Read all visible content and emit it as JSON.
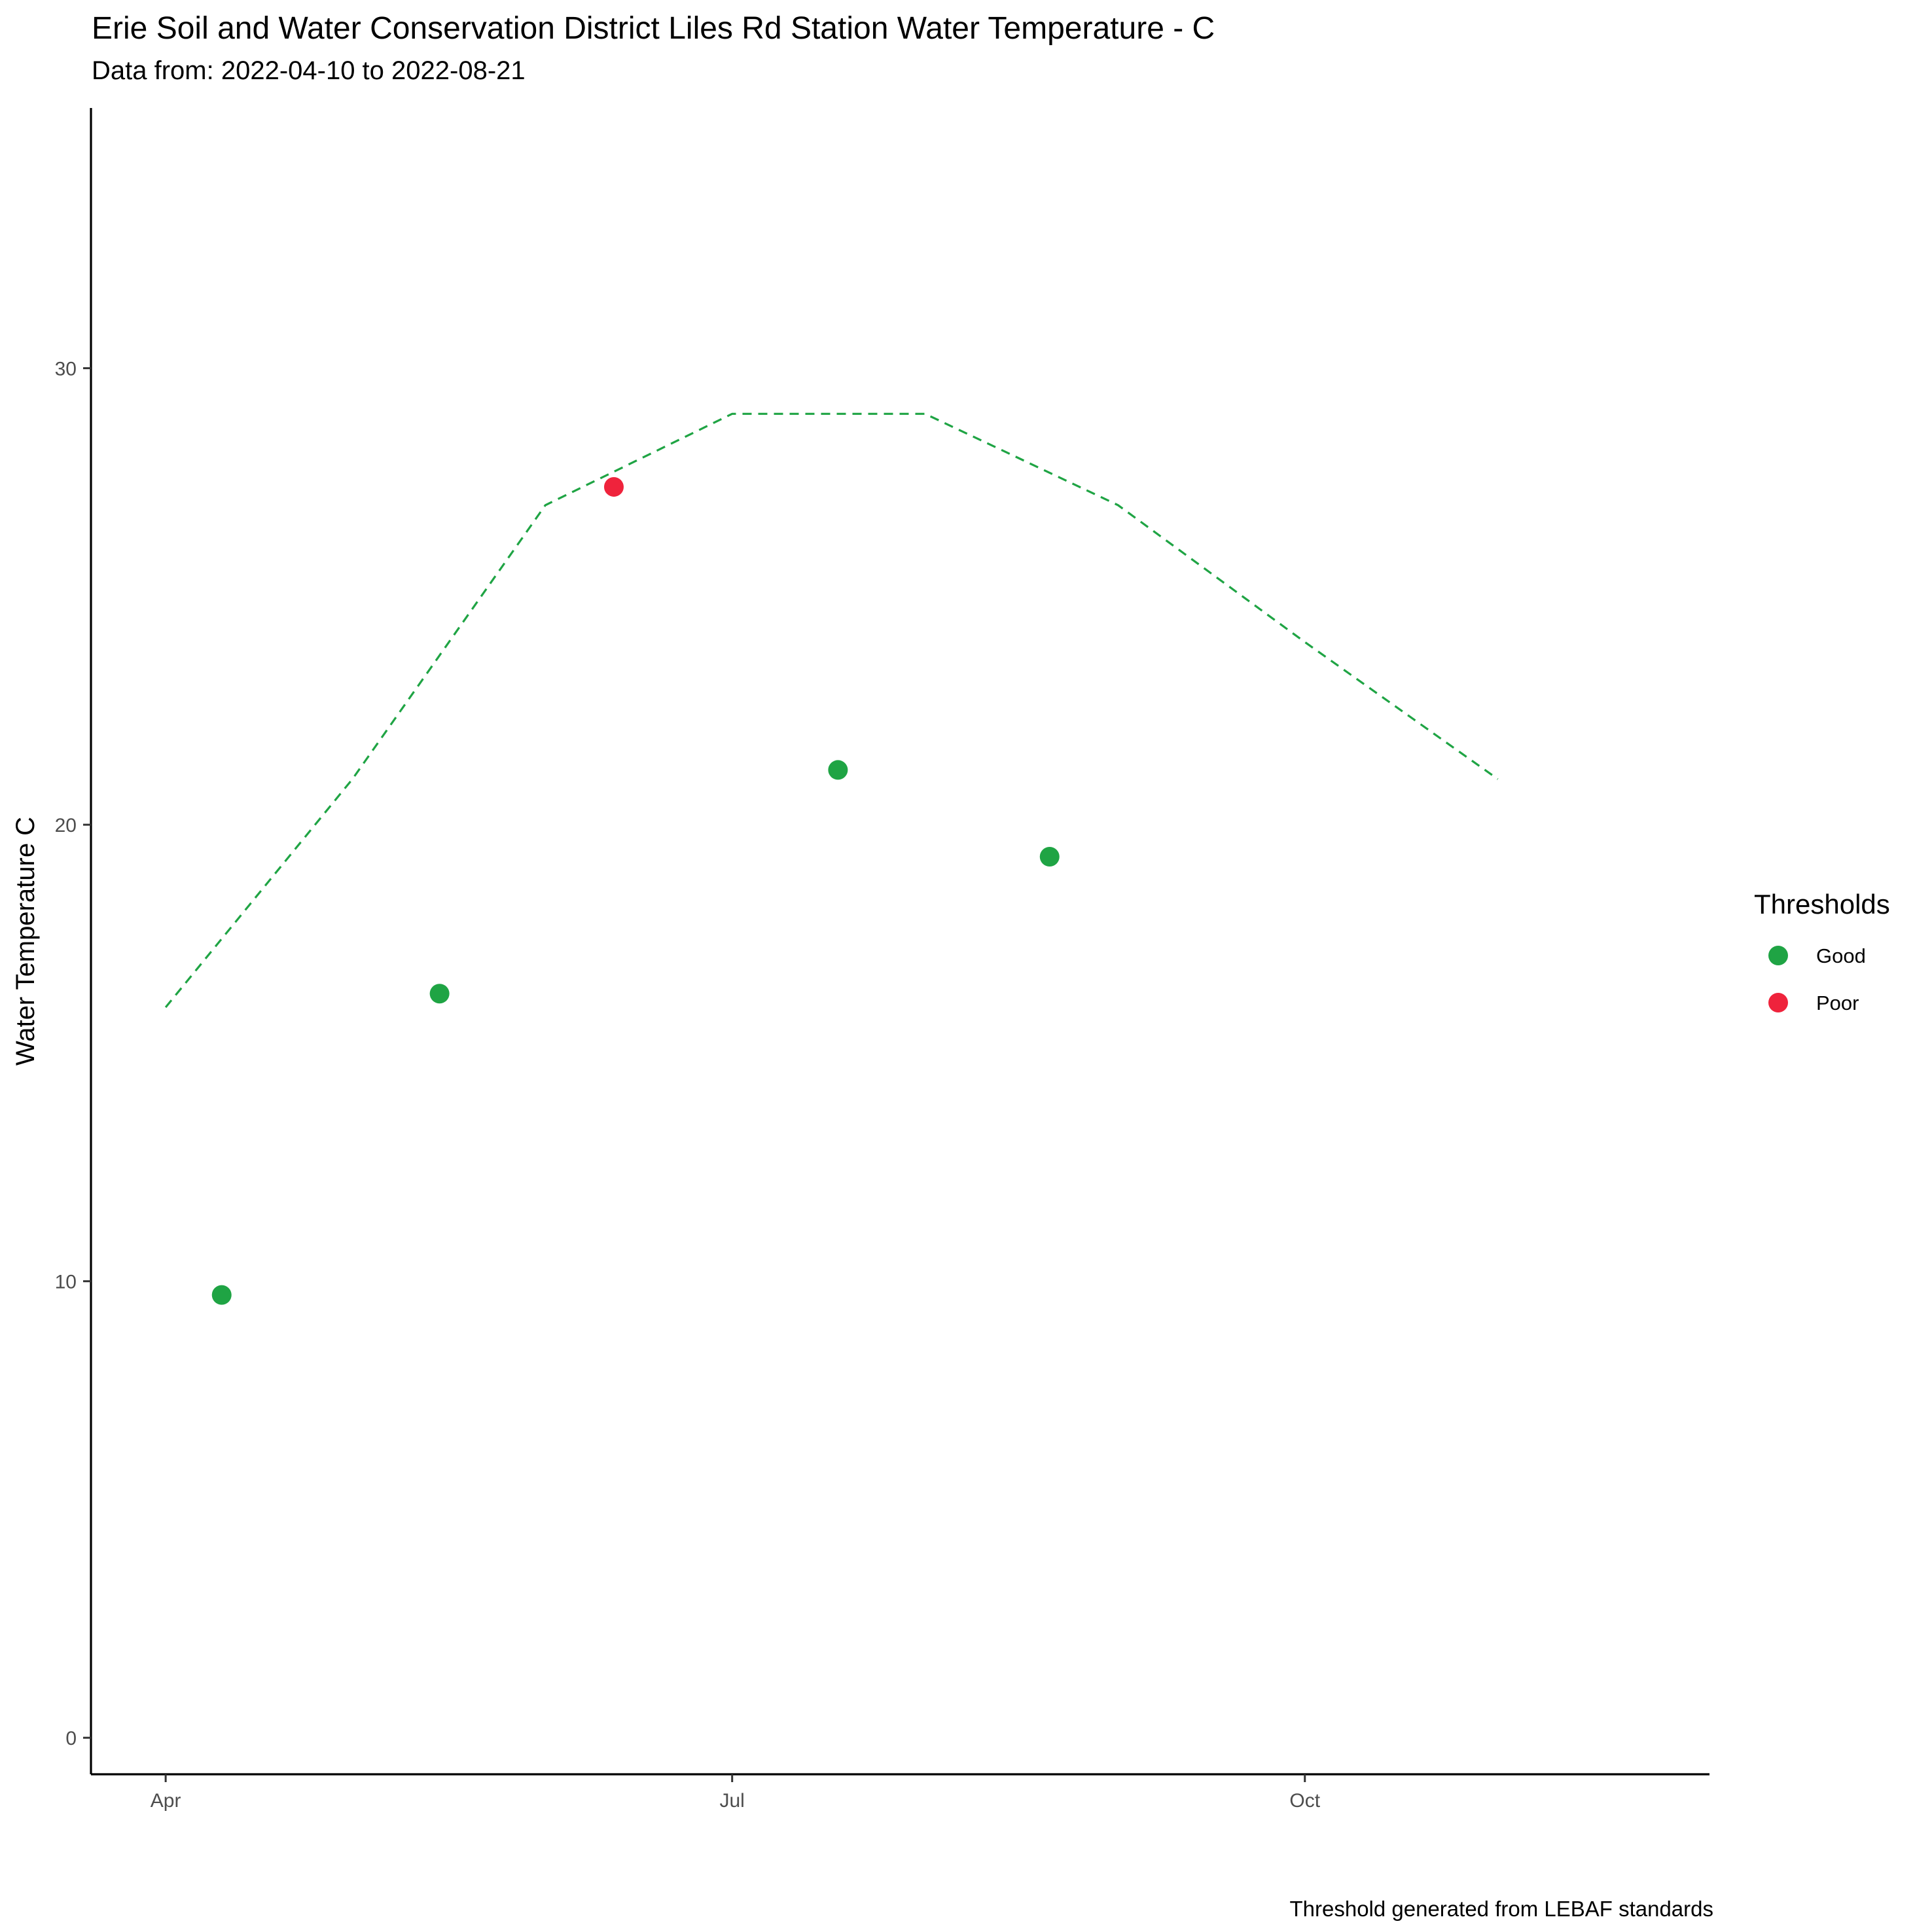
{
  "chart_data": {
    "type": "scatter",
    "title": "Erie Soil and Water Conservation District Liles Rd Station Water Temperature - C",
    "subtitle": "Data from: 2022-04-10 to 2022-08-21",
    "caption": "Threshold generated from LEBAF standards",
    "xlabel": "",
    "ylabel": "Water Temperature C",
    "x_axis": {
      "type": "date",
      "range": [
        "2022-03-20",
        "2022-12-05"
      ],
      "ticks": [
        {
          "date": "2022-04-01",
          "label": "Apr"
        },
        {
          "date": "2022-07-01",
          "label": "Jul"
        },
        {
          "date": "2022-10-01",
          "label": "Oct"
        }
      ]
    },
    "y_axis": {
      "range": [
        -0.8,
        35.7
      ],
      "ticks": [
        0,
        10,
        20,
        30
      ]
    },
    "grid": false,
    "legend": {
      "title": "Thresholds",
      "placement": "right",
      "entries": [
        {
          "label": "Good",
          "color": "#1fa444"
        },
        {
          "label": "Poor",
          "color": "#ef233c"
        }
      ]
    },
    "series": [
      {
        "name": "Good",
        "color": "#1fa444",
        "points": [
          {
            "x": "2022-04-10",
            "y": 9.7
          },
          {
            "x": "2022-05-15",
            "y": 16.3
          },
          {
            "x": "2022-07-18",
            "y": 21.2
          },
          {
            "x": "2022-08-21",
            "y": 19.3
          }
        ]
      },
      {
        "name": "Poor",
        "color": "#ef233c",
        "points": [
          {
            "x": "2022-06-12",
            "y": 27.4
          }
        ]
      }
    ],
    "threshold_line": {
      "style": "dashed",
      "color": "#1fa444",
      "points": [
        {
          "x": "2022-04-01",
          "y": 16
        },
        {
          "x": "2022-05-01",
          "y": 21
        },
        {
          "x": "2022-06-01",
          "y": 27
        },
        {
          "x": "2022-07-01",
          "y": 29
        },
        {
          "x": "2022-08-01",
          "y": 29
        },
        {
          "x": "2022-09-01",
          "y": 27
        },
        {
          "x": "2022-10-01",
          "y": 24
        },
        {
          "x": "2022-11-01",
          "y": 21
        }
      ]
    }
  }
}
